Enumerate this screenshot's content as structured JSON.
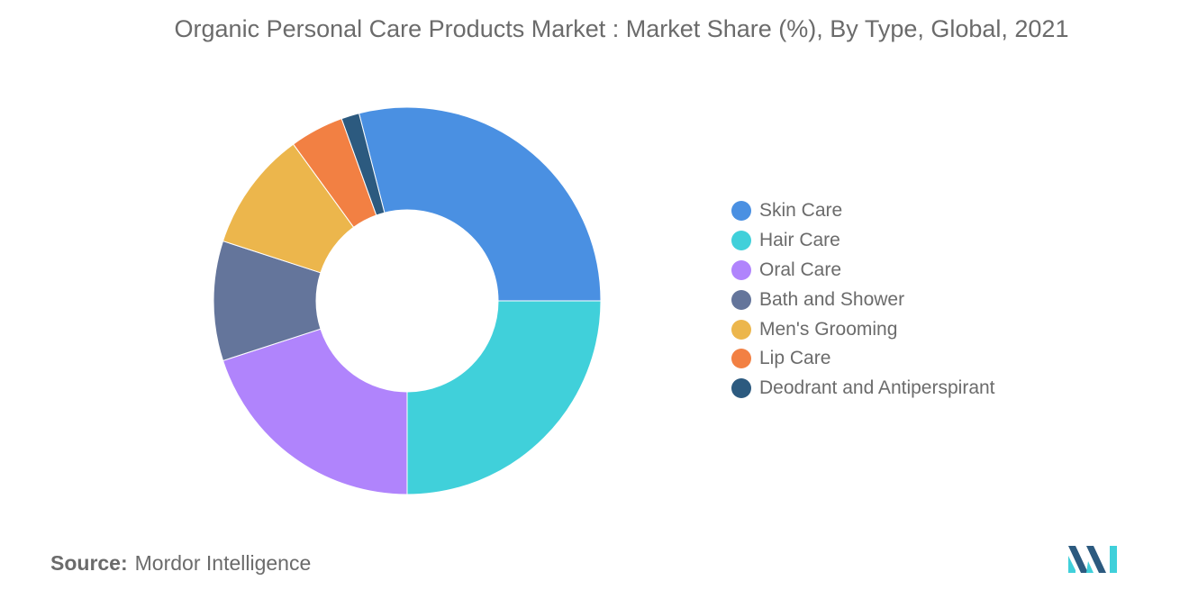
{
  "chart_data": {
    "type": "pie",
    "variant": "donut",
    "title": "Organic Personal Care Products Market : Market Share (%), By Type, Global, 2021",
    "categories": [
      "Skin Care",
      "Hair Care",
      "Oral Care",
      "Bath and Shower",
      "Men's Grooming",
      "Lip Care",
      "Deodrant and Antiperspirant"
    ],
    "values": [
      29.0,
      25.0,
      20.0,
      10.0,
      10.0,
      4.5,
      1.5
    ],
    "colors": [
      "#4a90e2",
      "#40d0da",
      "#b084fc",
      "#64759b",
      "#ecb64c",
      "#f28043",
      "#2c5a7f"
    ],
    "legend_position": "right"
  },
  "source": {
    "label": "Source:",
    "text": "Mordor Intelligence"
  },
  "logo": {
    "icon": "mordor-intelligence-logo",
    "colors": [
      "#2c5a7f",
      "#40d0da"
    ]
  }
}
